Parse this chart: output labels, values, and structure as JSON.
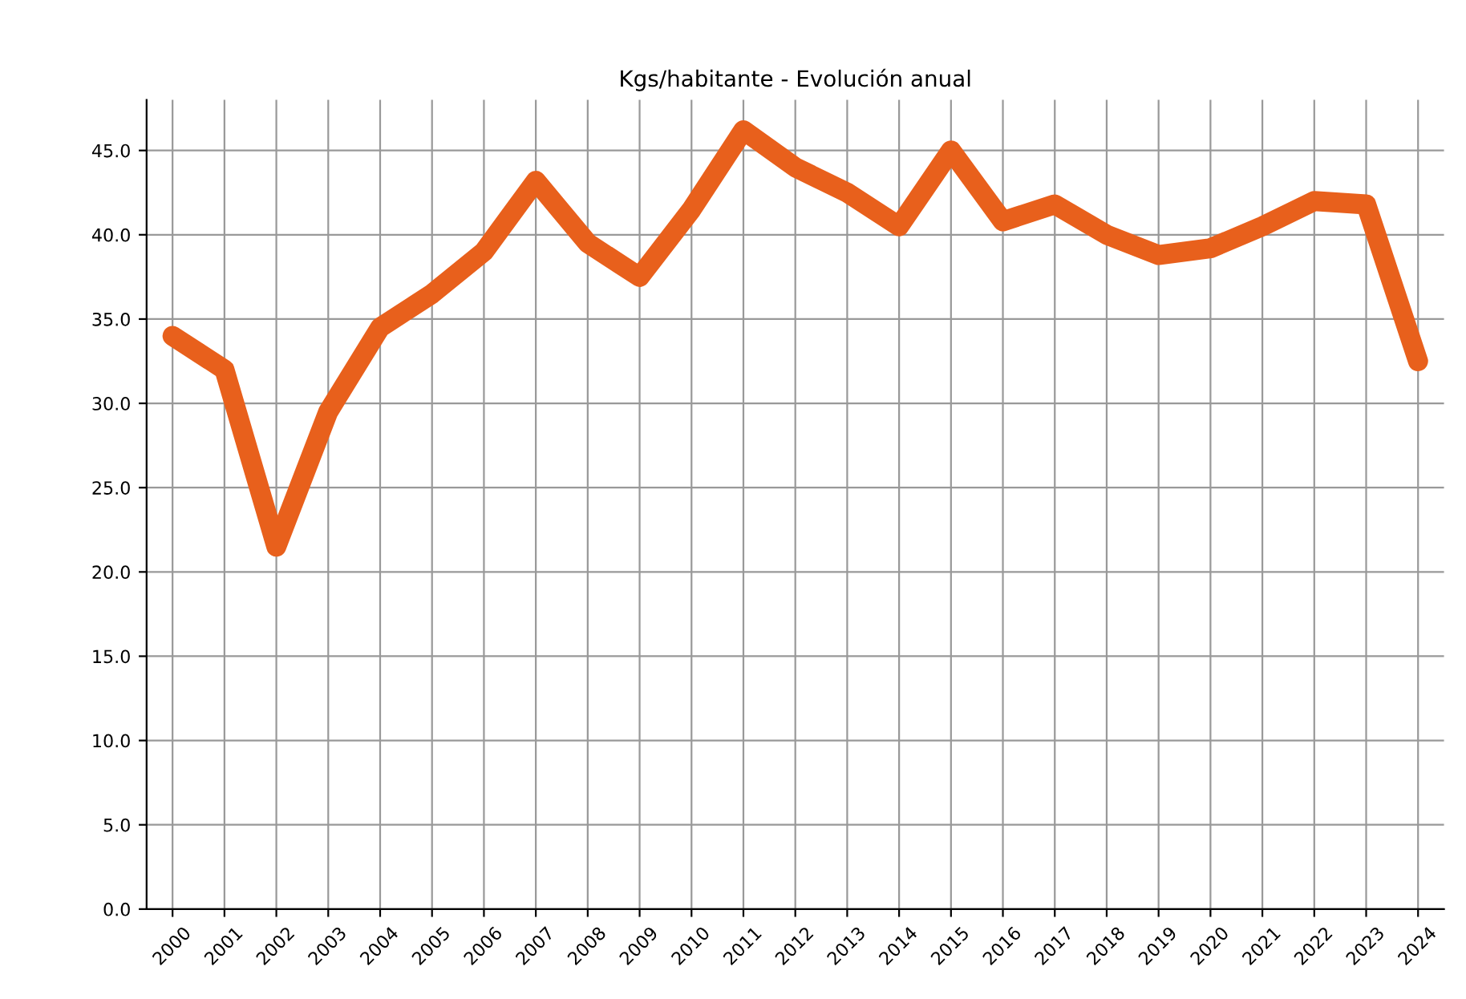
{
  "chart_data": {
    "type": "line",
    "title": "Kgs/habitante - Evolución anual",
    "categories": [
      "2000",
      "2001",
      "2002",
      "2003",
      "2004",
      "2005",
      "2006",
      "2007",
      "2008",
      "2009",
      "2010",
      "2011",
      "2012",
      "2013",
      "2014",
      "2015",
      "2016",
      "2017",
      "2018",
      "2019",
      "2020",
      "2021",
      "2022",
      "2023",
      "2024"
    ],
    "series": [
      {
        "color": "#e8601c",
        "values": [
          34.0,
          32.0,
          21.5,
          29.5,
          34.5,
          36.5,
          39.0,
          43.2,
          39.5,
          37.5,
          41.5,
          46.2,
          44.0,
          42.5,
          40.5,
          45.0,
          40.8,
          41.8,
          40.0,
          38.8,
          39.2,
          40.5,
          42.0,
          41.8,
          32.5
        ]
      }
    ],
    "ylim": [
      0,
      48
    ],
    "yticks": [
      {
        "value": 0,
        "label": "0.0"
      },
      {
        "value": 5,
        "label": "5.0"
      },
      {
        "value": 10,
        "label": "10.0"
      },
      {
        "value": 15,
        "label": "15.0"
      },
      {
        "value": 20,
        "label": "20.0"
      },
      {
        "value": 25,
        "label": "25.0"
      },
      {
        "value": 30,
        "label": "30.0"
      },
      {
        "value": 35,
        "label": "35.0"
      },
      {
        "value": 40,
        "label": "40.0"
      },
      {
        "value": 45,
        "label": "45.0"
      }
    ],
    "grid": true,
    "line_style": "solid"
  }
}
